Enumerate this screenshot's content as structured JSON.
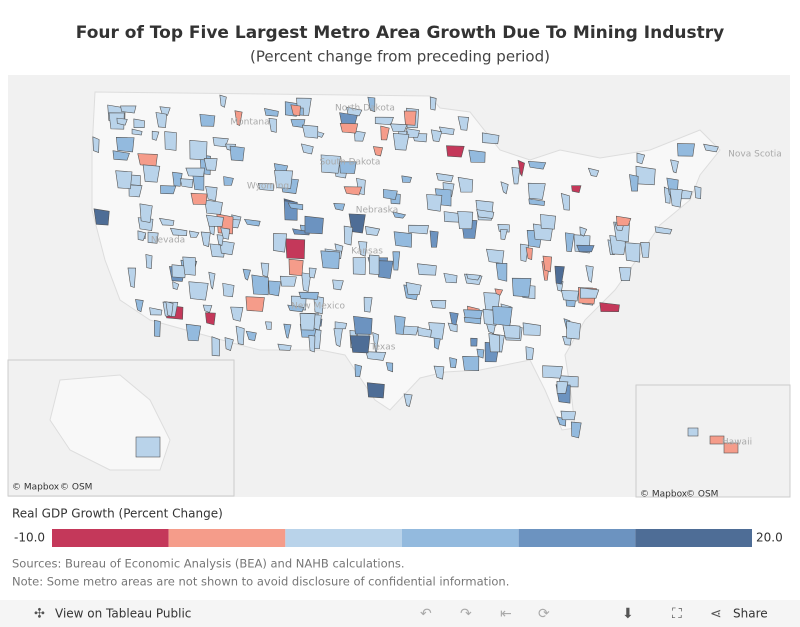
{
  "header": {
    "title": "Four of Top Five Largest Metro Area Growth Due To Mining Industry",
    "subtitle": "(Percent change from preceding period)"
  },
  "map": {
    "labels": [
      "North Dakota",
      "South Dakota",
      "Montana",
      "Wyoming",
      "Nebraska",
      "Nevada",
      "Kansas",
      "New Mexico",
      "Texas",
      "Nova Scotia",
      "Hawaii"
    ],
    "attribution": [
      "© Mapbox",
      "© OSM"
    ]
  },
  "legend": {
    "title": "Real GDP Growth (Percent Change)",
    "colors": [
      "#c4385a",
      "#f59c8a",
      "#b9d3ea",
      "#93bade",
      "#6c93c0",
      "#4e6d96"
    ],
    "range": [
      {
        "value": -10,
        "label": "-10.0"
      },
      {
        "value": 20,
        "label": "20.0"
      }
    ]
  },
  "notes": [
    "Sources: Bureau of Economic Analysis (BEA) and NAHB calculations.",
    "Note: Some metro areas are not shown to avoid disclosure of confidential information."
  ],
  "toolbar": {
    "view": "View on Tableau Public",
    "share": "Share"
  }
}
